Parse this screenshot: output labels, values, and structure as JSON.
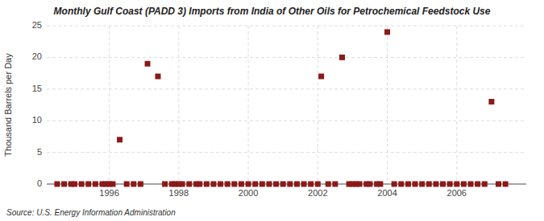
{
  "chart_data": {
    "type": "scatter",
    "title": "Monthly Gulf Coast (PADD 3) Imports from India of Other Oils for Petrochemical Feedstock Use",
    "ylabel": "Thousand Barrels per Day",
    "source": "Source: U.S. Energy Information Administration",
    "color": "#8b1a1a",
    "marker": "square",
    "grid": true,
    "xlim": [
      1994.2,
      2008.0
    ],
    "ylim": [
      0,
      25
    ],
    "yticks": [
      0,
      5,
      10,
      15,
      20,
      25
    ],
    "xticks": [
      1996,
      1998,
      2000,
      2002,
      2004,
      2006
    ],
    "x": [
      1994.5,
      1994.7,
      1994.9,
      1995.0,
      1995.2,
      1995.4,
      1995.6,
      1995.8,
      1995.9,
      1996.0,
      1996.1,
      1996.3,
      1996.5,
      1996.7,
      1996.9,
      1997.1,
      1997.4,
      1997.6,
      1997.8,
      1997.9,
      1998.0,
      1998.1,
      1998.3,
      1998.5,
      1998.6,
      1998.8,
      1999.0,
      1999.2,
      1999.4,
      1999.6,
      1999.8,
      2000.0,
      2000.2,
      2000.4,
      2000.6,
      2000.8,
      2001.0,
      2001.2,
      2001.4,
      2001.6,
      2001.8,
      2002.0,
      2002.1,
      2002.3,
      2002.5,
      2002.7,
      2002.9,
      2003.0,
      2003.1,
      2003.2,
      2003.4,
      2003.5,
      2003.7,
      2003.8,
      2004.0,
      2004.2,
      2004.4,
      2004.6,
      2004.8,
      2005.0,
      2005.2,
      2005.4,
      2005.6,
      2005.8,
      2006.0,
      2006.2,
      2006.4,
      2006.6,
      2006.8,
      2007.0,
      2007.2,
      2007.4
    ],
    "values": [
      0,
      0,
      0,
      0,
      0,
      0,
      0,
      0,
      0,
      0,
      0,
      7.0,
      0,
      0,
      0,
      19.0,
      17.0,
      0,
      0,
      0,
      0,
      0,
      0,
      0,
      0,
      0,
      0,
      0,
      0,
      0,
      0,
      0,
      0,
      0,
      0,
      0,
      0,
      0,
      0,
      0,
      0,
      0,
      17.0,
      0,
      0,
      20.0,
      0,
      0,
      0,
      0,
      0,
      0,
      0,
      0,
      24.0,
      0,
      0,
      0,
      0,
      0,
      0,
      0,
      0,
      0,
      0,
      0,
      0,
      0,
      0,
      13.0,
      0,
      0
    ]
  }
}
